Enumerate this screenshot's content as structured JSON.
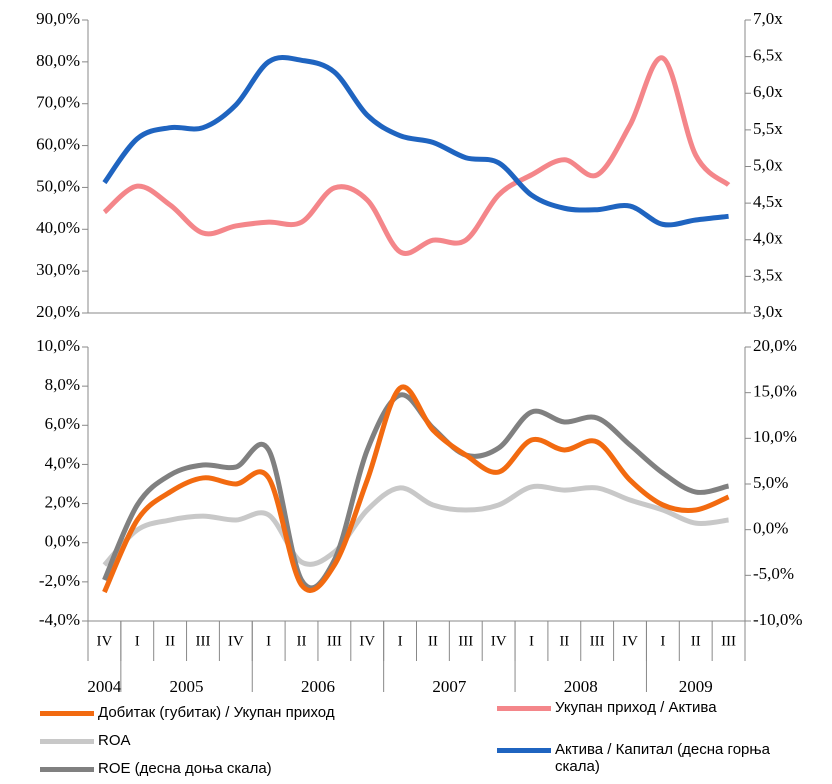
{
  "chart_data": [
    {
      "type": "line",
      "categories": [
        "IV",
        "I",
        "II",
        "III",
        "IV",
        "I",
        "II",
        "III",
        "IV",
        "I",
        "II",
        "III",
        "IV",
        "I",
        "II",
        "III",
        "IV",
        "I",
        "II",
        "III"
      ],
      "ylim": [
        20,
        90
      ],
      "yticks": [
        {
          "value": 20,
          "label": "20,0%"
        },
        {
          "value": 30,
          "label": "30,0%"
        },
        {
          "value": 40,
          "label": "40,0%"
        },
        {
          "value": 50,
          "label": "50,0%"
        },
        {
          "value": 60,
          "label": "60,0%"
        },
        {
          "value": 70,
          "label": "70,0%"
        },
        {
          "value": 80,
          "label": "80,0%"
        },
        {
          "value": 90,
          "label": "90,0%"
        }
      ],
      "y2lim": [
        3,
        7
      ],
      "y2ticks": [
        {
          "value": 3,
          "label": "3,0x"
        },
        {
          "value": 3.5,
          "label": "3,5x"
        },
        {
          "value": 4,
          "label": "4,0x"
        },
        {
          "value": 4.5,
          "label": "4,5x"
        },
        {
          "value": 5,
          "label": "5,0x"
        },
        {
          "value": 5.5,
          "label": "5,5x"
        },
        {
          "value": 6,
          "label": "6,0x"
        },
        {
          "value": 6.5,
          "label": "6,5x"
        },
        {
          "value": 7,
          "label": "7,0x"
        }
      ],
      "series": [
        {
          "name": "Укупан приход / Актива",
          "color": "#f4868a",
          "values": [
            44.1,
            50.3,
            45.8,
            39.1,
            40.8,
            41.7,
            41.7,
            49.9,
            47.0,
            34.6,
            37.4,
            37.4,
            48.2,
            53.0,
            56.6,
            53.0,
            64.9,
            80.9,
            57.7,
            50.6
          ]
        },
        {
          "name": "Актива / Капитал (десна горња скала)",
          "color": "#1f64c0",
          "axis": "y2",
          "values": [
            4.78,
            5.38,
            5.53,
            5.53,
            5.84,
            6.43,
            6.45,
            6.29,
            5.7,
            5.42,
            5.33,
            5.12,
            5.05,
            4.61,
            4.43,
            4.41,
            4.46,
            4.21,
            4.27,
            4.32
          ]
        }
      ]
    },
    {
      "type": "line",
      "categories": [
        "IV",
        "I",
        "II",
        "III",
        "IV",
        "I",
        "II",
        "III",
        "IV",
        "I",
        "II",
        "III",
        "IV",
        "I",
        "II",
        "III",
        "IV",
        "I",
        "II",
        "III"
      ],
      "years": [
        "2004",
        "2005",
        "2006",
        "2007",
        "2008",
        "2009"
      ],
      "ylim": [
        -4,
        10
      ],
      "yticks": [
        {
          "value": -4,
          "label": "-4,0%"
        },
        {
          "value": -2,
          "label": "-2,0%"
        },
        {
          "value": 0,
          "label": "0,0%"
        },
        {
          "value": 2,
          "label": "2,0%"
        },
        {
          "value": 4,
          "label": "4,0%"
        },
        {
          "value": 6,
          "label": "6,0%"
        },
        {
          "value": 8,
          "label": "8,0%"
        },
        {
          "value": 10,
          "label": "10,0%"
        }
      ],
      "y2lim": [
        -10,
        20
      ],
      "y2ticks": [
        {
          "value": -10,
          "label": "-10,0%"
        },
        {
          "value": -5,
          "label": "-5,0%"
        },
        {
          "value": 0,
          "label": "0,0%"
        },
        {
          "value": 5,
          "label": "5,0%"
        },
        {
          "value": 10,
          "label": "10,0%"
        },
        {
          "value": 15,
          "label": "15,0%"
        },
        {
          "value": 20,
          "label": "20,0%"
        }
      ],
      "series": [
        {
          "name": "ROA",
          "color": "#c8c8c8",
          "values": [
            -1.14,
            0.65,
            1.16,
            1.36,
            1.16,
            1.42,
            -0.99,
            -0.48,
            1.67,
            2.8,
            1.93,
            1.67,
            1.93,
            2.85,
            2.69,
            2.8,
            2.18,
            1.67,
            1.0,
            1.16
          ]
        },
        {
          "name": "ROE (десна доња скала)",
          "color": "#808080",
          "axis": "y2",
          "values": [
            -5.51,
            2.7,
            5.99,
            7.08,
            6.86,
            8.72,
            -5.51,
            -3.32,
            8.72,
            14.74,
            11.13,
            8.17,
            8.94,
            12.88,
            11.79,
            12.23,
            9.27,
            6.2,
            4.12,
            4.78
          ]
        },
        {
          "name": "Добитак (губитак) / Укупан приход",
          "color": "#f26a10",
          "values": [
            -2.52,
            1.16,
            2.59,
            3.31,
            3.0,
            3.31,
            -2.16,
            -1.14,
            3.2,
            7.9,
            5.76,
            4.48,
            3.61,
            5.25,
            4.74,
            5.15,
            3.2,
            1.93,
            1.67,
            2.34
          ]
        }
      ]
    }
  ]
}
